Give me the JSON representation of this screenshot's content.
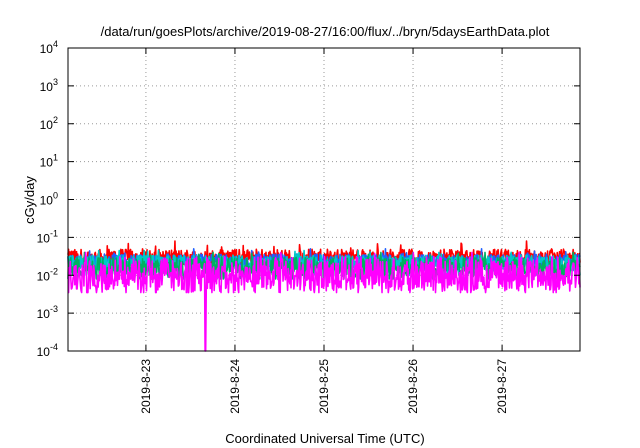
{
  "chart_data": {
    "type": "line",
    "title": "/data/run/goesPlots/archive/2019-08-27/16:00/flux/../bryn/5daysEarthData.plot",
    "xlabel": "Coordinated Universal Time (UTC)",
    "ylabel": "cGy/day",
    "yscale": "log",
    "ylim": [
      0.0001,
      10000
    ],
    "xlim": [
      "2019-8-22 03:00",
      "2019-8-27 21:00"
    ],
    "x_ticks": [
      "2019-8-23",
      "2019-8-24",
      "2019-8-25",
      "2019-8-26",
      "2019-8-27"
    ],
    "y_ticks": [
      {
        "base": "10",
        "exp": "-4"
      },
      {
        "base": "10",
        "exp": "-3"
      },
      {
        "base": "10",
        "exp": "-2"
      },
      {
        "base": "10",
        "exp": "-1"
      },
      {
        "base": "10",
        "exp": "0"
      },
      {
        "base": "10",
        "exp": "1"
      },
      {
        "base": "10",
        "exp": "2"
      },
      {
        "base": "10",
        "exp": "3"
      },
      {
        "base": "10",
        "exp": "4"
      }
    ],
    "grid": true,
    "series": [
      {
        "color": "#ff0000",
        "baseline": 0.03,
        "spread": 0.35,
        "floor": 0.018,
        "peak": 0.08
      },
      {
        "color": "#2060ff",
        "baseline": 0.024,
        "spread": 0.3,
        "floor": 0.012,
        "peak": 0.05
      },
      {
        "color": "#00c8c8",
        "baseline": 0.021,
        "spread": 0.35,
        "floor": 0.01,
        "peak": 0.045
      },
      {
        "color": "#00b060",
        "baseline": 0.016,
        "spread": 0.45,
        "floor": 0.008,
        "peak": 0.04
      },
      {
        "color": "#ff00ff",
        "baseline": 0.011,
        "spread": 0.75,
        "floor": 0.0035,
        "peak": 0.04,
        "dip_at": "2019-8-23 16:00",
        "dip_value": 0.0001
      }
    ]
  }
}
